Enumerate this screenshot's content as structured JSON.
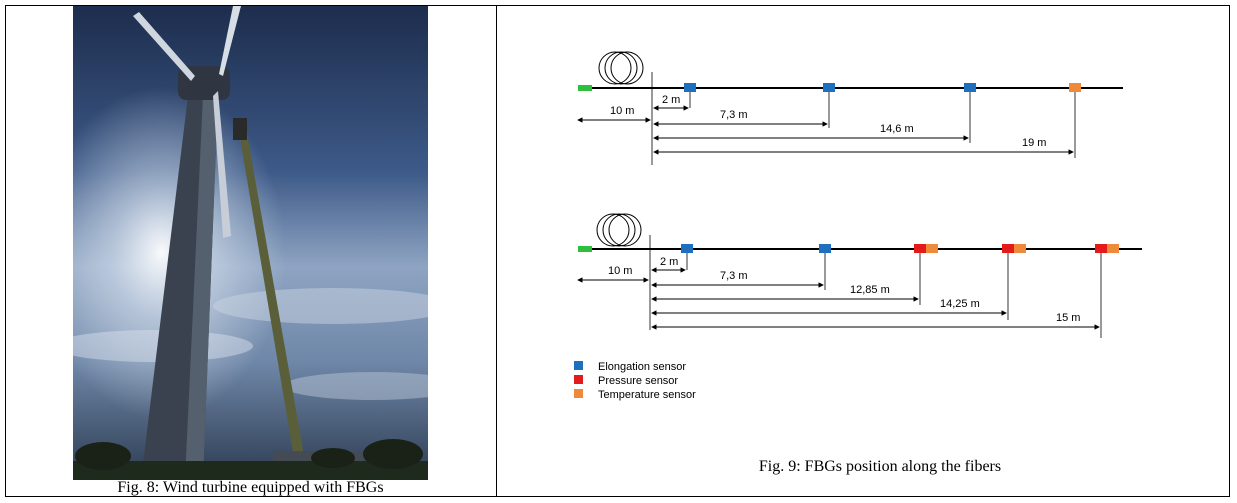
{
  "figure8": {
    "caption": "Fig. 8: Wind turbine equipped with FBGs"
  },
  "figure9": {
    "caption": "Fig. 9: FBGs position along the fibers",
    "fiber1": {
      "labels": {
        "offset": "10 m",
        "d1": "2 m",
        "d2": "7,3 m",
        "d3": "14,6 m",
        "d4": "19 m"
      }
    },
    "fiber2": {
      "labels": {
        "offset": "10 m",
        "d1": "2 m",
        "d2": "7,3 m",
        "d3": "12,85 m",
        "d4": "14,25 m",
        "d5": "15 m"
      }
    },
    "legend": [
      {
        "label": "Elongation sensor",
        "color": "#1f6fbf"
      },
      {
        "label": "Pressure sensor",
        "color": "#e41b1b"
      },
      {
        "label": "Temperature sensor",
        "color": "#ee8a3a"
      }
    ],
    "connector_color": "#2fbf3f"
  }
}
